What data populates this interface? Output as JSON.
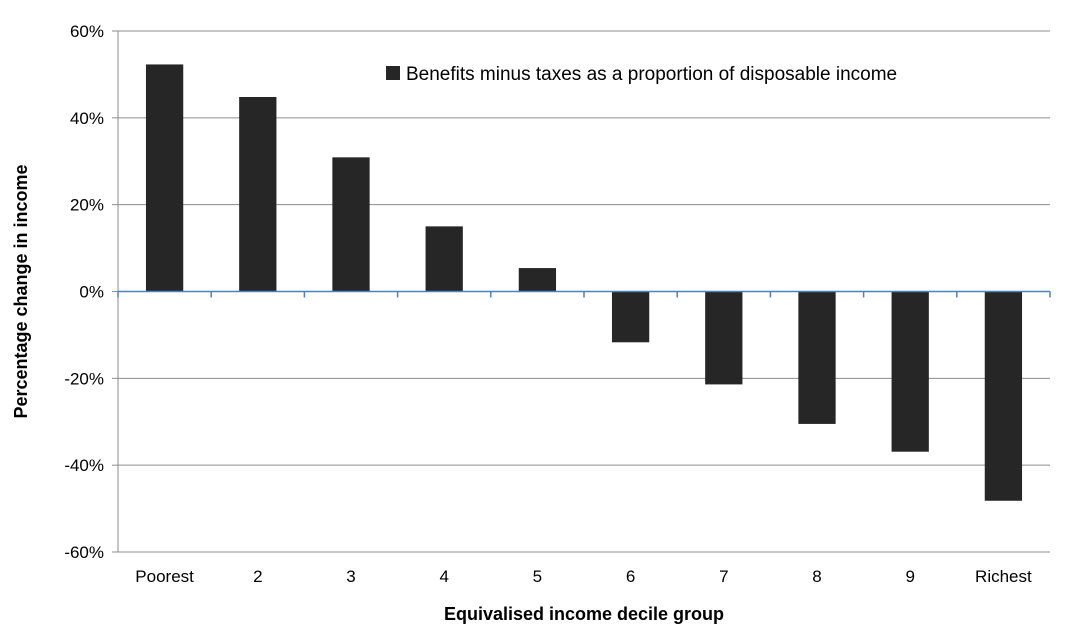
{
  "chart_data": {
    "type": "bar",
    "title": "",
    "xlabel": "Equivalised income decile group",
    "ylabel": "Percentage change in income",
    "categories": [
      "Poorest",
      "2",
      "3",
      "4",
      "5",
      "6",
      "7",
      "8",
      "9",
      "Richest"
    ],
    "series": [
      {
        "name": "Benefits minus taxes as a proportion of disposable income",
        "values": [
          52.3,
          44.8,
          30.9,
          15.0,
          5.4,
          -11.7,
          -21.4,
          -30.5,
          -36.9,
          -48.2
        ],
        "color": "#262626"
      }
    ],
    "ylim": [
      -60,
      60
    ],
    "y_ticks": [
      60,
      40,
      20,
      0,
      -20,
      -40,
      -60
    ],
    "y_tick_labels": [
      "60%",
      "40%",
      "20%",
      "0%",
      "-20%",
      "-40%",
      "-60%"
    ],
    "grid": true,
    "legend_position": "top-right",
    "gridline_color": "#8c8c8c",
    "zero_line_color": "#4f81bd"
  }
}
